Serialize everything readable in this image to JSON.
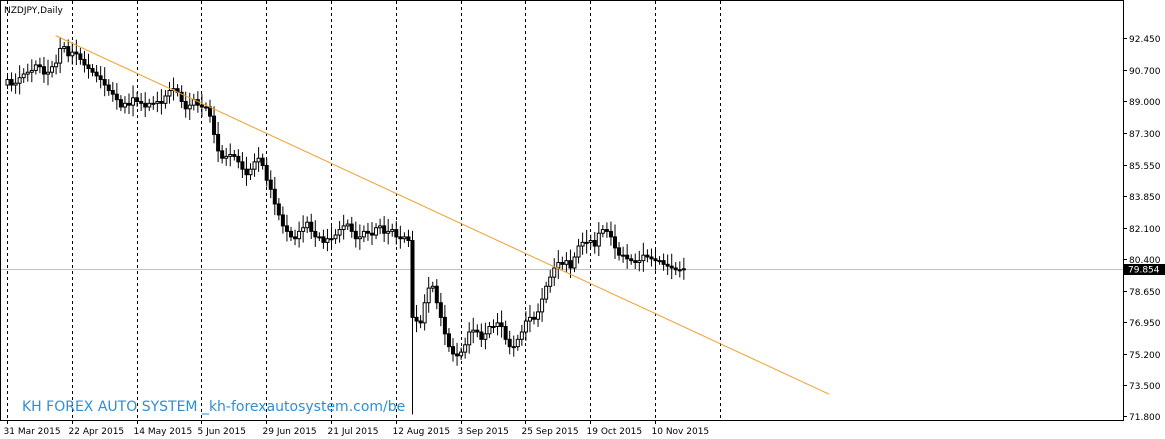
{
  "chart_data": {
    "type": "candlestick",
    "title": "NZDJPY,Daily",
    "grid": true,
    "ylim": [
      71.7,
      93.4
    ],
    "current_price": "79.854",
    "current_price_value": 79.854,
    "y_ticks": [
      "92.450",
      "90.700",
      "89.000",
      "87.300",
      "85.550",
      "83.850",
      "82.100",
      "80.400",
      "78.650",
      "76.950",
      "75.200",
      "73.500",
      "71.800"
    ],
    "x_ticks": [
      {
        "label": "31 Mar 2015",
        "index": 0
      },
      {
        "label": "22 Apr 2015",
        "index": 16
      },
      {
        "label": "14 May 2015",
        "index": 32
      },
      {
        "label": "5 Jun 2015",
        "index": 48
      },
      {
        "label": "29 Jun 2015",
        "index": 64
      },
      {
        "label": "21 Jul 2015",
        "index": 80
      },
      {
        "label": "12 Aug 2015",
        "index": 96
      },
      {
        "label": "3 Sep 2015",
        "index": 112
      },
      {
        "label": "25 Sep 2015",
        "index": 128
      },
      {
        "label": "19 Oct 2015",
        "index": 144
      },
      {
        "label": "10 Nov 2015",
        "index": 160
      }
    ],
    "vlines_index": [
      0,
      16,
      32,
      48,
      64,
      80,
      96,
      112,
      128,
      144,
      160,
      176
    ],
    "trendline": {
      "from": {
        "index": 12,
        "price": 92.6
      },
      "to": {
        "index": 203,
        "price": 73.0
      }
    },
    "close": [
      90.2,
      89.9,
      90.0,
      90.3,
      90.5,
      90.6,
      90.7,
      91.0,
      90.9,
      90.5,
      90.6,
      90.9,
      91.1,
      91.9,
      92.0,
      91.5,
      91.7,
      91.6,
      91.3,
      91.0,
      90.8,
      90.6,
      90.4,
      90.2,
      89.9,
      89.6,
      89.4,
      89.1,
      88.7,
      88.9,
      88.8,
      89.2,
      89.0,
      88.9,
      88.7,
      88.9,
      88.9,
      89.0,
      88.9,
      89.3,
      89.6,
      89.7,
      89.5,
      89.0,
      88.6,
      88.8,
      89.1,
      88.8,
      88.7,
      88.7,
      88.2,
      87.2,
      86.3,
      85.9,
      86.0,
      86.1,
      86.0,
      85.7,
      85.3,
      85.0,
      85.3,
      85.7,
      85.9,
      85.5,
      84.7,
      84.2,
      83.4,
      82.8,
      82.2,
      81.9,
      81.6,
      81.5,
      81.9,
      82.1,
      82.4,
      81.9,
      81.6,
      81.6,
      81.3,
      81.5,
      81.5,
      81.7,
      82.0,
      82.2,
      82.3,
      81.9,
      81.5,
      81.6,
      81.9,
      81.8,
      81.7,
      82.1,
      82.2,
      81.8,
      81.9,
      82.0,
      81.6,
      81.5,
      81.6,
      81.4,
      77.2,
      77.0,
      76.9,
      78.0,
      78.8,
      78.9,
      78.0,
      77.2,
      76.3,
      75.6,
      75.2,
      75.1,
      75.3,
      75.7,
      76.4,
      76.5,
      76.4,
      76.0,
      76.3,
      76.7,
      76.7,
      76.9,
      76.7,
      76.0,
      75.6,
      75.6,
      76.0,
      76.4,
      77.0,
      77.2,
      77.1,
      77.5,
      78.2,
      78.9,
      79.4,
      79.9,
      80.2,
      80.1,
      80.3,
      79.9,
      80.5,
      81.1,
      81.3,
      81.3,
      81.4,
      81.1,
      81.8,
      82.0,
      81.9,
      81.6,
      81.0,
      80.6,
      80.6,
      80.4,
      80.3,
      80.2,
      80.3,
      80.6,
      80.5,
      80.4,
      80.3,
      80.3,
      80.1,
      80.0,
      79.9,
      79.8,
      79.8,
      79.854
    ]
  },
  "branding": {
    "text": "KH FOREX AUTO SYSTEM  _kh-forexautosystem.com/be"
  }
}
